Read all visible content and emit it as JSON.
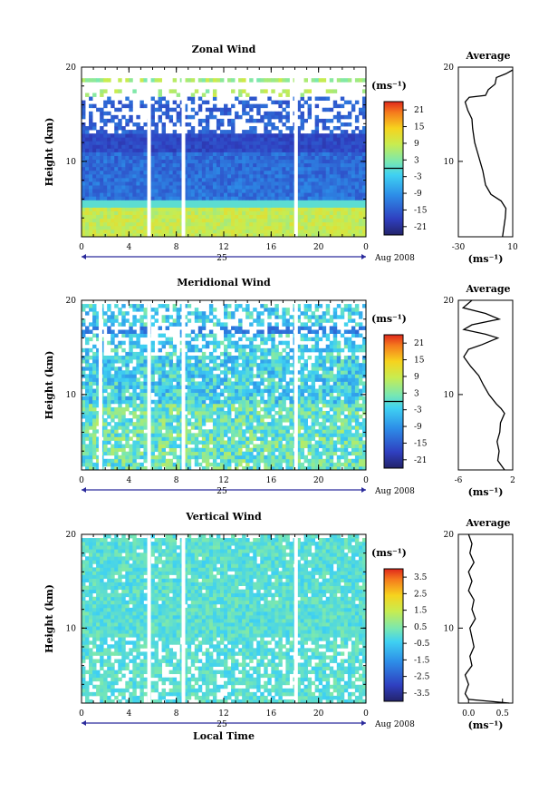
{
  "chart_data": [
    {
      "type": "heatmap",
      "title": "Zonal Wind",
      "ylabel": "Height (km)",
      "xlim": [
        0,
        24
      ],
      "ylim": [
        2,
        20
      ],
      "x_ticks": [
        "0",
        "4",
        "8",
        "12",
        "16",
        "20",
        "0"
      ],
      "y_ticks": [
        "20",
        "10"
      ],
      "date_day": "25",
      "date_label": "Aug 2008",
      "gaps_hours": [
        5.7,
        8.6,
        18.1
      ],
      "profile": [
        [
          2,
          2.5
        ],
        [
          3,
          3.5
        ],
        [
          4,
          4.5
        ],
        [
          5,
          5
        ],
        [
          5.8,
          1.5
        ],
        [
          6.5,
          -6
        ],
        [
          7.5,
          -10
        ],
        [
          9,
          -12
        ],
        [
          10,
          -14
        ],
        [
          11,
          -16
        ],
        [
          12,
          -18
        ],
        [
          13.5,
          -19.5
        ],
        [
          14.5,
          -20
        ],
        [
          15.4,
          -23
        ],
        [
          16.3,
          -25
        ],
        [
          16.8,
          -22
        ],
        [
          17,
          -10
        ],
        [
          17.6,
          -8
        ],
        [
          18.2,
          -3
        ],
        [
          18.9,
          -2
        ],
        [
          19.3,
          5
        ],
        [
          19.7,
          10
        ]
      ],
      "colorbar": {
        "unit": "(ms⁻¹)",
        "ticks": [
          "21",
          "15",
          "9",
          "3",
          "-3",
          "-9",
          "-15",
          "-21"
        ],
        "range": [
          -24,
          24
        ]
      },
      "average": {
        "title": "Average",
        "xlabel": "(ms⁻¹)",
        "x_ticks": [
          "-30",
          "10"
        ],
        "xlim": [
          -30,
          10
        ],
        "y_ticks": [
          "20",
          "10"
        ]
      }
    },
    {
      "type": "heatmap",
      "title": "Meridional Wind",
      "ylabel": "Height (km)",
      "xlim": [
        0,
        24
      ],
      "ylim": [
        2,
        20
      ],
      "x_ticks": [
        "0",
        "4",
        "8",
        "12",
        "16",
        "20",
        "0"
      ],
      "y_ticks": [
        "20",
        "10"
      ],
      "date_day": "25",
      "date_label": "Aug 2008",
      "gaps_hours": [
        1.6,
        5.7,
        8.6,
        18.1
      ],
      "profile": [
        [
          2,
          0.8
        ],
        [
          3,
          -0.2
        ],
        [
          4,
          0
        ],
        [
          5,
          -0.3
        ],
        [
          6,
          0.1
        ],
        [
          7,
          0.2
        ],
        [
          8,
          0.8
        ],
        [
          8.5,
          0.3
        ],
        [
          9,
          -0.4
        ],
        [
          10,
          -1.5
        ],
        [
          11,
          -2.3
        ],
        [
          12,
          -3
        ],
        [
          13,
          -4.2
        ],
        [
          14,
          -5.2
        ],
        [
          14.8,
          -4.5
        ],
        [
          15.3,
          -2.5
        ],
        [
          16,
          -0.2
        ],
        [
          16.4,
          -2
        ],
        [
          16.9,
          -5.2
        ],
        [
          17.4,
          -4
        ],
        [
          18,
          0
        ],
        [
          18.6,
          -2
        ],
        [
          19.2,
          -5.3
        ],
        [
          20,
          -4
        ]
      ],
      "colorbar": {
        "unit": "(ms⁻¹)",
        "ticks": [
          "21",
          "15",
          "9",
          "3",
          "-3",
          "-9",
          "-15",
          "-21"
        ],
        "range": [
          -24,
          24
        ]
      },
      "average": {
        "title": "Average",
        "xlabel": "(ms⁻¹)",
        "x_ticks": [
          "-6",
          "2"
        ],
        "xlim": [
          -6,
          2
        ],
        "y_ticks": [
          "20",
          "10"
        ]
      }
    },
    {
      "type": "heatmap",
      "title": "Vertical Wind",
      "ylabel": "Height (km)",
      "xlabel": "Local Time",
      "xlim": [
        0,
        24
      ],
      "ylim": [
        2,
        20
      ],
      "x_ticks": [
        "0",
        "4",
        "8",
        "12",
        "16",
        "20",
        "0"
      ],
      "y_ticks": [
        "20",
        "10"
      ],
      "date_day": "25",
      "date_label": "Aug 2008",
      "gaps_hours": [
        5.7,
        8.6,
        18.1
      ],
      "profile": [
        [
          2,
          0.6
        ],
        [
          2.4,
          0
        ],
        [
          3,
          -0.05
        ],
        [
          4,
          0
        ],
        [
          5,
          -0.05
        ],
        [
          6,
          0.05
        ],
        [
          7,
          0.02
        ],
        [
          8,
          0.08
        ],
        [
          9,
          0.05
        ],
        [
          10,
          0.02
        ],
        [
          11,
          0.1
        ],
        [
          12,
          0.05
        ],
        [
          13,
          0.08
        ],
        [
          14,
          0
        ],
        [
          15,
          0.05
        ],
        [
          16,
          0
        ],
        [
          17,
          0.08
        ],
        [
          18,
          0.02
        ],
        [
          19,
          0.05
        ],
        [
          20,
          0
        ]
      ],
      "colorbar": {
        "unit": "(ms⁻¹)",
        "ticks": [
          "3.5",
          "2.5",
          "1.5",
          "0.5",
          "-0.5",
          "-1.5",
          "-2.5",
          "-3.5"
        ],
        "range": [
          -4,
          4
        ]
      },
      "average": {
        "title": "Average",
        "xlabel": "(ms⁻¹)",
        "x_ticks": [
          "0.0",
          "0.5"
        ],
        "xlim": [
          -0.15,
          0.65
        ],
        "y_ticks": [
          "20",
          "10"
        ]
      }
    }
  ]
}
